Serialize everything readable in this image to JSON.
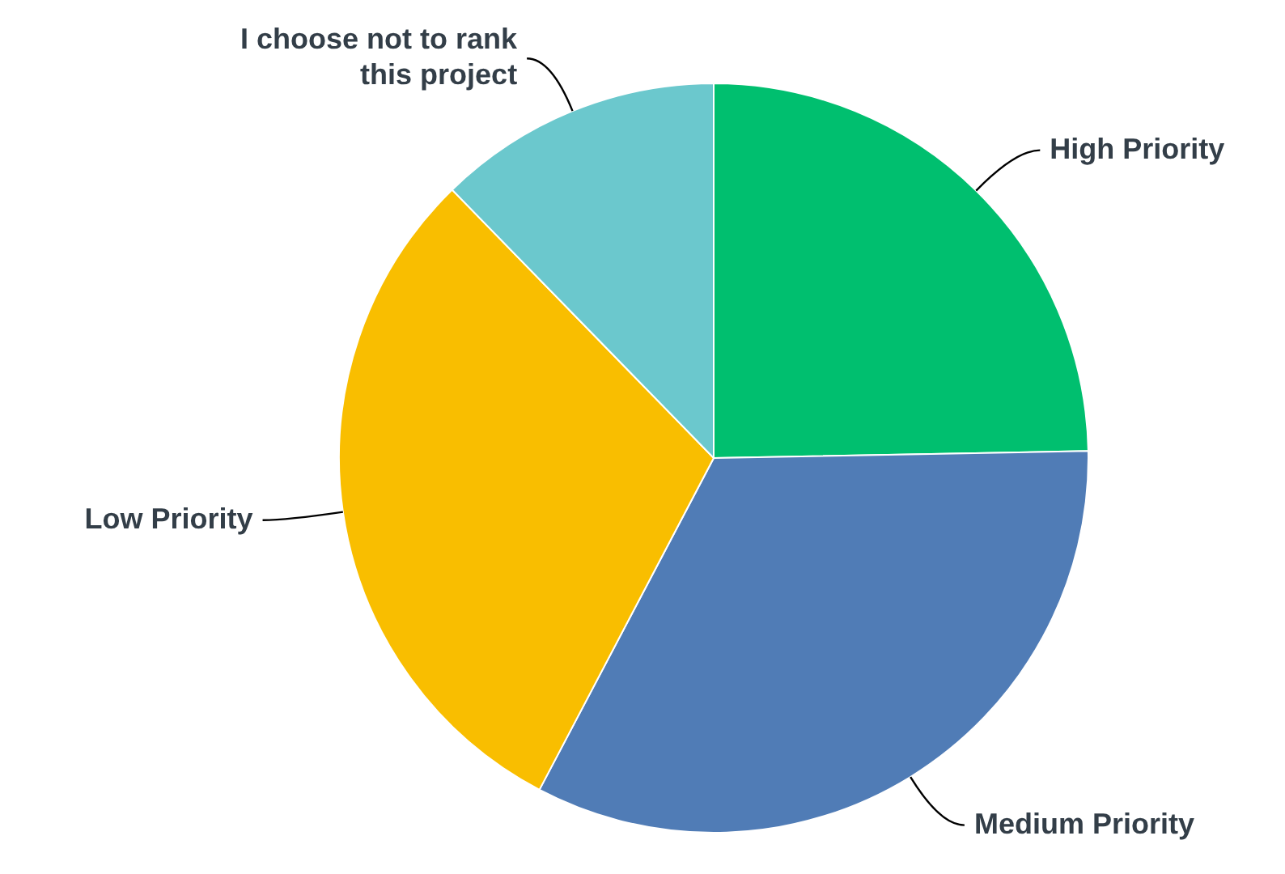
{
  "chart_data": {
    "type": "pie",
    "categories": [
      "High Priority",
      "Medium Priority",
      "Low Priority",
      "I choose not to rank this project"
    ],
    "values": [
      24.7,
      33.0,
      30.0,
      12.3
    ],
    "colors": [
      "#00bf6f",
      "#507cb6",
      "#f9be00",
      "#6bc8cd"
    ],
    "legend": false
  }
}
